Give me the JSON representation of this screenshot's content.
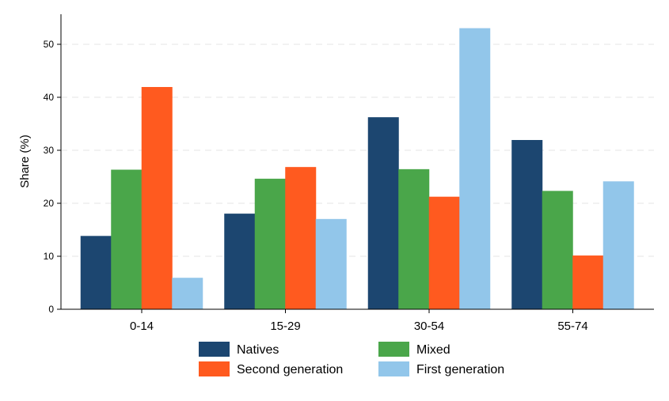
{
  "chart_data": {
    "type": "bar",
    "title": "",
    "xlabel": "",
    "ylabel": "Share (%)",
    "categories": [
      "0-14",
      "15-29",
      "30-54",
      "55-74"
    ],
    "ylim": [
      0,
      55
    ],
    "yticks": [
      0,
      10,
      20,
      30,
      40,
      50
    ],
    "grid": "horizontal dashed",
    "legend_position": "bottom",
    "series": [
      {
        "name": "Natives",
        "color": "#1c4670",
        "values": [
          13.8,
          18.0,
          36.2,
          31.9
        ]
      },
      {
        "name": "Mixed",
        "color": "#4aa64a",
        "values": [
          26.3,
          24.6,
          26.4,
          22.3
        ]
      },
      {
        "name": "Second generation",
        "color": "#ff5a1f",
        "values": [
          41.9,
          26.8,
          21.2,
          10.1
        ]
      },
      {
        "name": "First generation",
        "color": "#92c6ea",
        "values": [
          5.9,
          17.0,
          53.0,
          24.1
        ]
      }
    ]
  }
}
